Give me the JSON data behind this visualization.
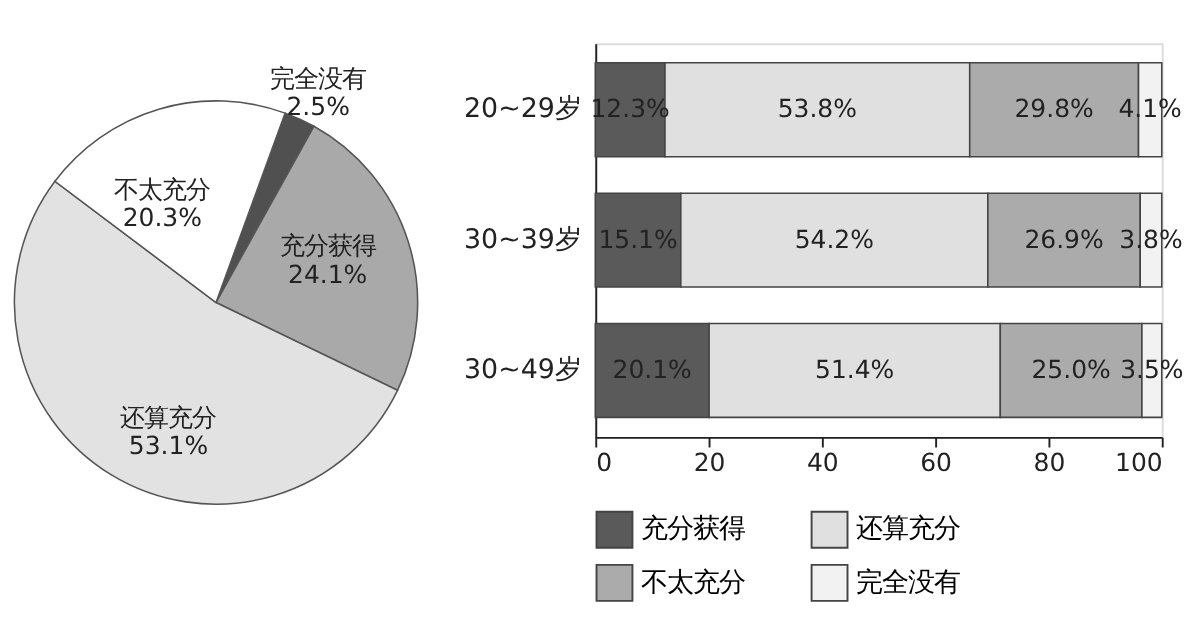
{
  "chart_data": [
    {
      "type": "pie",
      "categories": [
        "完全没有",
        "充分获得",
        "还算充分",
        "不太充分"
      ],
      "values": [
        2.5,
        24.1,
        53.1,
        20.3
      ],
      "colors": [
        "#505050",
        "#a9a9a9",
        "#e2e2e2",
        "#ffffff"
      ],
      "value_labels": [
        "2.5%",
        "24.1%",
        "53.1%",
        "20.3%"
      ],
      "legend": false
    },
    {
      "type": "bar",
      "orientation": "horizontal",
      "stacked": true,
      "categories": [
        "20~29岁",
        "30~39岁",
        "30~49岁"
      ],
      "xlim": [
        0,
        100
      ],
      "xticks": [
        0,
        20,
        40,
        60,
        80,
        100
      ],
      "grid": false,
      "legend": "bottom",
      "series": [
        {
          "name": "充分获得",
          "color": "#5a5a5a",
          "values": [
            12.3,
            15.1,
            20.1
          ],
          "value_labels": [
            "12.3%",
            "15.1%",
            "20.1%"
          ]
        },
        {
          "name": "还算充分",
          "color": "#e0e0e0",
          "values": [
            53.8,
            54.2,
            51.4
          ],
          "value_labels": [
            "53.8%",
            "54.2%",
            "51.4%"
          ]
        },
        {
          "name": "不太充分",
          "color": "#ababab",
          "values": [
            29.8,
            26.9,
            25.0
          ],
          "value_labels": [
            "29.8%",
            "26.9%",
            "25.0%"
          ]
        },
        {
          "name": "完全没有",
          "color": "#f2f2f2",
          "values": [
            4.1,
            3.8,
            3.5
          ],
          "value_labels": [
            "4.1%",
            "3.8%",
            "3.5%"
          ]
        }
      ]
    }
  ]
}
